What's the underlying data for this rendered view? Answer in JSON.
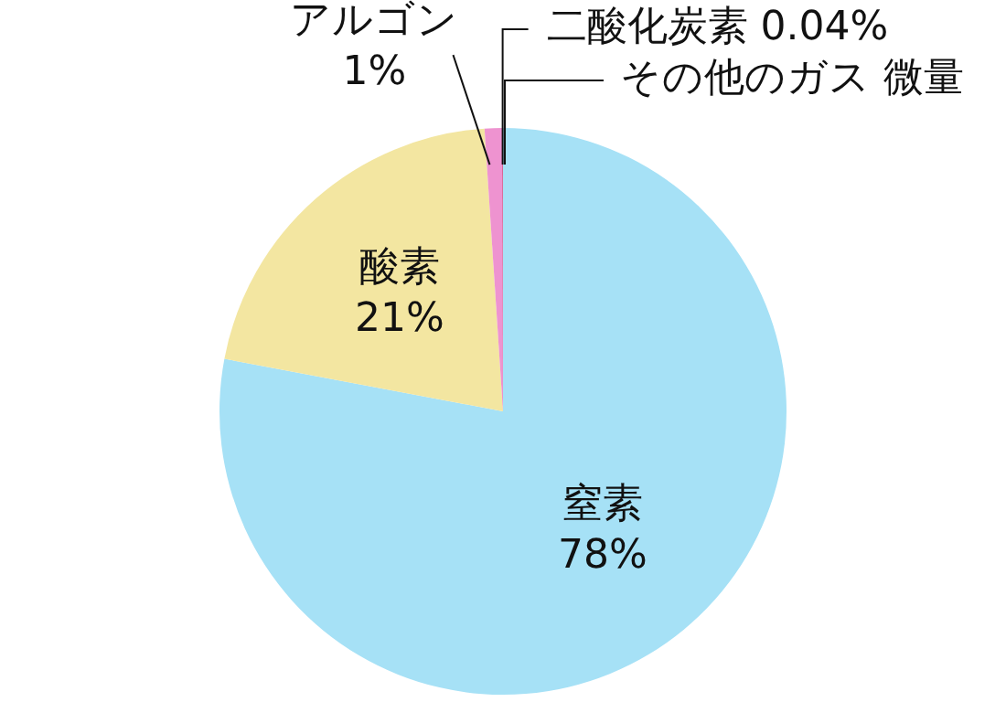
{
  "chart_data": {
    "type": "pie",
    "categories": [
      "窒素",
      "酸素",
      "アルゴン",
      "二酸化炭素",
      "その他のガス"
    ],
    "values": [
      78,
      21,
      1,
      0.04,
      null
    ],
    "colors": [
      "#a6e1f6",
      "#f3e6a1",
      "#ee93d0",
      "#c8306e",
      "#333333"
    ],
    "value_labels": [
      "78%",
      "21%",
      "1%",
      "0.04%",
      "微量"
    ],
    "legend": false
  }
}
